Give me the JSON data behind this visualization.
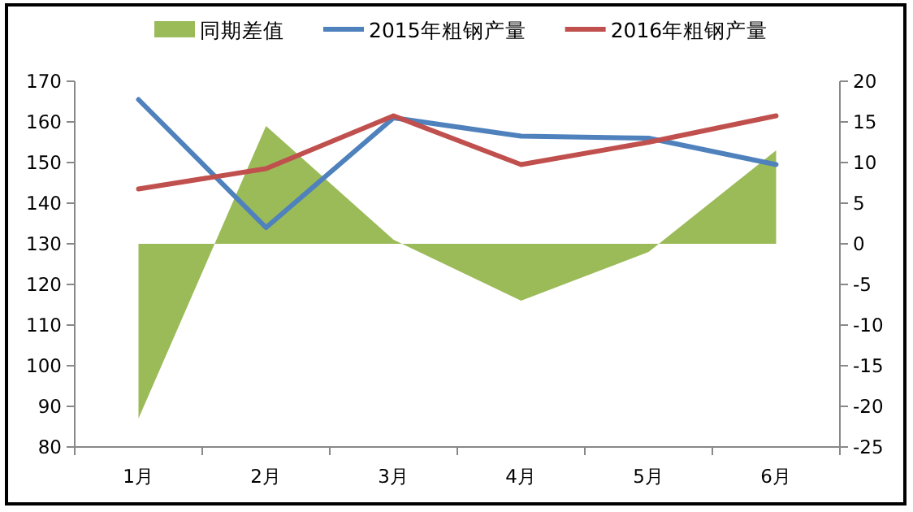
{
  "chart_data": {
    "type": "line",
    "categories": [
      "1月",
      "2月",
      "3月",
      "4月",
      "5月",
      "6月"
    ],
    "series": [
      {
        "name": "同期差值",
        "type": "area",
        "axis": "y2",
        "color": "#9bbb59",
        "values": [
          -21.5,
          14.5,
          0.5,
          -7,
          -1,
          11.5
        ]
      },
      {
        "name": "2015年粗钢产量",
        "color": "#4f81bd",
        "values": [
          165.5,
          134,
          161,
          156.5,
          156,
          149.5
        ]
      },
      {
        "name": "2016年粗钢产量",
        "color": "#c0504d",
        "values": [
          143.5,
          148.5,
          161.5,
          149.5,
          155,
          161.5
        ]
      }
    ],
    "ylim": [
      80,
      170
    ],
    "yticks": [
      80,
      90,
      100,
      110,
      120,
      130,
      140,
      150,
      160,
      170
    ],
    "y2lim": [
      -25,
      20
    ],
    "y2ticks": [
      -25,
      -20,
      -15,
      -10,
      -5,
      0,
      5,
      10,
      15,
      20
    ],
    "grid": false,
    "legend": "top",
    "marker": "none",
    "line_style": "solid"
  }
}
